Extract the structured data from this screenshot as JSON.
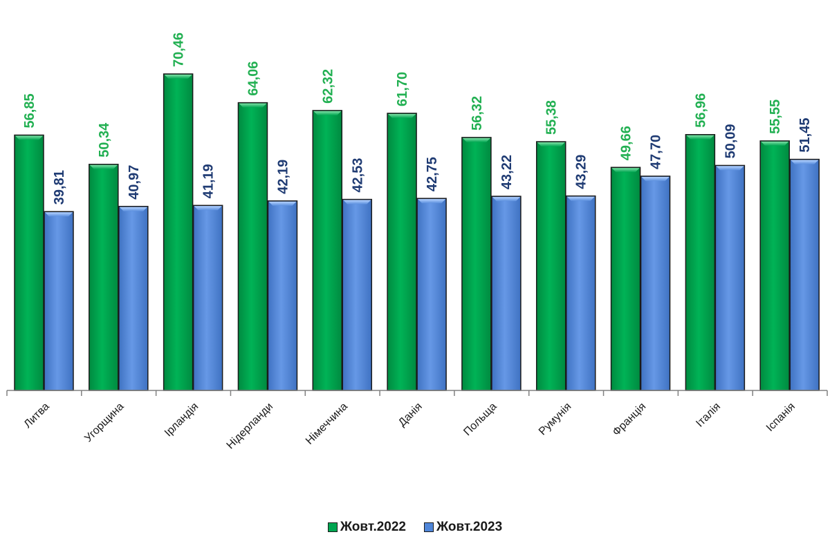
{
  "chart_data": {
    "type": "bar",
    "categories": [
      "Литва",
      "Угорщина",
      "Ірландія",
      "Нідерланди",
      "Німеччина",
      "Данія",
      "Польща",
      "Румунія",
      "Франція",
      "Італія",
      "Іспанія"
    ],
    "series": [
      {
        "name": "Жовт.2022",
        "values": [
          56.85,
          50.34,
          70.46,
          64.06,
          62.32,
          61.7,
          56.32,
          55.38,
          49.66,
          56.96,
          55.55
        ],
        "labels": [
          "56,85",
          "50,34",
          "70,46",
          "64,06",
          "62,32",
          "61,70",
          "56,32",
          "55,38",
          "49,66",
          "56,96",
          "55,55"
        ],
        "color": "#00A651",
        "label_color": "#22B052"
      },
      {
        "name": "Жовт.2023",
        "values": [
          39.81,
          40.97,
          41.19,
          42.19,
          42.53,
          42.75,
          43.22,
          43.29,
          47.7,
          50.09,
          51.45
        ],
        "labels": [
          "39,81",
          "40,97",
          "41,19",
          "42,19",
          "42,53",
          "42,75",
          "43,22",
          "43,29",
          "47,70",
          "50,09",
          "51,45"
        ],
        "color": "#4F86D9",
        "label_color": "#1F3B73"
      }
    ],
    "title": "",
    "xlabel": "",
    "ylabel": "",
    "ylim": [
      0,
      75
    ],
    "grid": false,
    "legend_position": "bottom-center"
  }
}
